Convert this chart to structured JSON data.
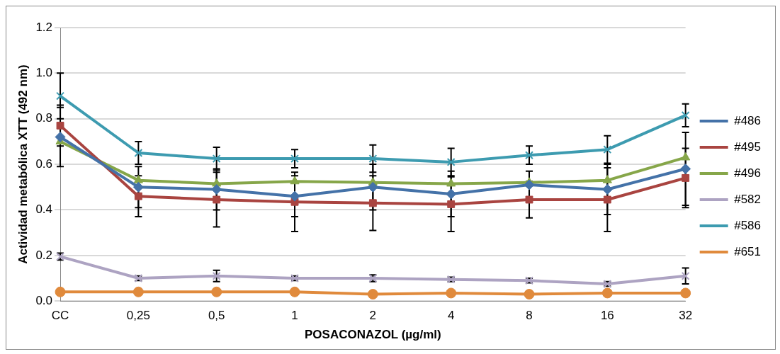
{
  "chart_data": {
    "type": "line",
    "xlabel": "POSACONAZOL (µg/ml)",
    "ylabel": "Actividad metabólica XTT (492 nm)",
    "categories": [
      "CC",
      "0,25",
      "0,5",
      "1",
      "2",
      "4",
      "8",
      "16",
      "32"
    ],
    "ylim": [
      0,
      1.2
    ],
    "yticks": [
      {
        "value": 0,
        "label": "0.0"
      },
      {
        "value": 0.2,
        "label": "0.2"
      },
      {
        "value": 0.4,
        "label": "0.4"
      },
      {
        "value": 0.6,
        "label": "0.6"
      },
      {
        "value": 0.8,
        "label": "0.8"
      },
      {
        "value": 1,
        "label": "1.0"
      },
      {
        "value": 1.2,
        "label": "1.2"
      }
    ],
    "grid": "y",
    "legend": "right",
    "series": [
      {
        "name": "#486",
        "color": "#4472a8",
        "marker": "diamond",
        "values": [
          0.72,
          0.5,
          0.49,
          0.46,
          0.5,
          0.47,
          0.51,
          0.49,
          0.58
        ],
        "errors": [
          0.13,
          0.09,
          0.09,
          0.09,
          0.1,
          0.1,
          0.06,
          0.11,
          0.16
        ]
      },
      {
        "name": "#495",
        "color": "#a94440",
        "marker": "square",
        "values": [
          0.77,
          0.46,
          0.445,
          0.435,
          0.43,
          0.425,
          0.445,
          0.445,
          0.54
        ],
        "errors": [
          0.09,
          0.09,
          0.12,
          0.13,
          0.12,
          0.12,
          0.08,
          0.14,
          0.13
        ]
      },
      {
        "name": "#496",
        "color": "#86a649",
        "marker": "triangle",
        "values": [
          0.7,
          0.53,
          0.515,
          0.525,
          0.52,
          0.515,
          0.52,
          0.53,
          0.63
        ]
      },
      {
        "name": "#582",
        "color": "#ada3c2",
        "marker": "cross",
        "values": [
          0.195,
          0.1,
          0.11,
          0.1,
          0.1,
          0.095,
          0.09,
          0.075,
          0.11
        ],
        "errors": [
          0.015,
          0.01,
          0.025,
          0.01,
          0.015,
          0.01,
          0.01,
          0.01,
          0.035
        ]
      },
      {
        "name": "#586",
        "color": "#3d9bb0",
        "marker": "cross",
        "values": [
          0.9,
          0.65,
          0.625,
          0.625,
          0.625,
          0.61,
          0.64,
          0.665,
          0.815
        ],
        "errors": [
          0.1,
          0.05,
          0.05,
          0.04,
          0.06,
          0.06,
          0.04,
          0.06,
          0.05
        ]
      },
      {
        "name": "#651",
        "color": "#e08a3c",
        "marker": "circle",
        "values": [
          0.04,
          0.04,
          0.04,
          0.04,
          0.03,
          0.035,
          0.03,
          0.035,
          0.035
        ]
      }
    ]
  }
}
